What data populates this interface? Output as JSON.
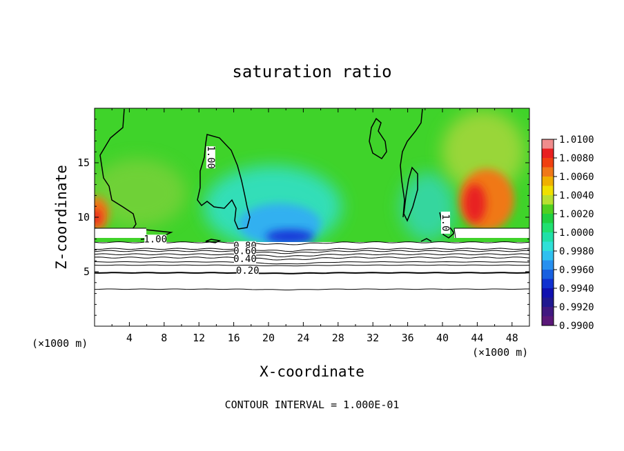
{
  "chart_data": {
    "type": "heatmap",
    "title": "saturation ratio",
    "xlabel": "X-coordinate",
    "ylabel": "Z-coordinate",
    "x_unit_label": "(×1000 m)",
    "y_unit_label": "(×1000 m)",
    "xlim": [
      0,
      50
    ],
    "ylim": [
      0,
      20
    ],
    "x_ticks": [
      4,
      8,
      12,
      16,
      20,
      24,
      28,
      32,
      36,
      40,
      44,
      48
    ],
    "y_ticks": [
      5,
      10,
      15
    ],
    "colorbar": {
      "min": 0.99,
      "max": 1.01,
      "tick_labels": [
        "1.0100",
        "1.0080",
        "1.0060",
        "1.0040",
        "1.0020",
        "1.0000",
        "0.9980",
        "0.9960",
        "0.9940",
        "0.9920",
        "0.9900"
      ],
      "colors": [
        "#f08c8c",
        "#e82020",
        "#f04010",
        "#f07818",
        "#f0b000",
        "#f0e000",
        "#b8e030",
        "#50d020",
        "#20d040",
        "#20e070",
        "#20e0a8",
        "#30e0d8",
        "#30c0f0",
        "#2890f0",
        "#1860e0",
        "#1030d0",
        "#1010b0",
        "#201890",
        "#401880",
        "#5a1878"
      ]
    },
    "contour_interval_text": "CONTOUR INTERVAL = 1.000E-01",
    "contour_labels": [
      {
        "text": "1.00",
        "x": 13.0,
        "y": 15.5,
        "rotate": 90
      },
      {
        "text": "1.00",
        "x": 7.0,
        "y": 7.7
      },
      {
        "text": "0.80",
        "x": 17.3,
        "y": 7.1
      },
      {
        "text": "0.60",
        "x": 17.3,
        "y": 6.6
      },
      {
        "text": "0.40",
        "x": 17.3,
        "y": 5.9
      },
      {
        "text": "0.20",
        "x": 17.6,
        "y": 4.8
      },
      {
        "text": "1.0",
        "x": 40.0,
        "y": 9.5,
        "rotate": 90
      }
    ],
    "contour_levels_below": [
      {
        "level": "0.9",
        "z": 7.7,
        "width": 1
      },
      {
        "level": "0.8",
        "z": 7.1,
        "width": 1
      },
      {
        "level": "0.7",
        "z": 6.9,
        "width": 1
      },
      {
        "level": "0.6",
        "z": 6.6,
        "width": 1
      },
      {
        "level": "0.5",
        "z": 6.3,
        "width": 1
      },
      {
        "level": "0.4",
        "z": 5.9,
        "width": 1
      },
      {
        "level": "0.3",
        "z": 5.6,
        "width": 1
      },
      {
        "level": "0.2",
        "z": 4.9,
        "width": 2
      },
      {
        "level": "0.1",
        "z": 3.4,
        "width": 1
      }
    ],
    "field_notes": "cloud layer z 8-19 km; dry-side minimum 0.992 near x=22, z=8.5; supersaturated maxima ~1.007 near x=44, z=12 and x=0-1, z=10"
  }
}
